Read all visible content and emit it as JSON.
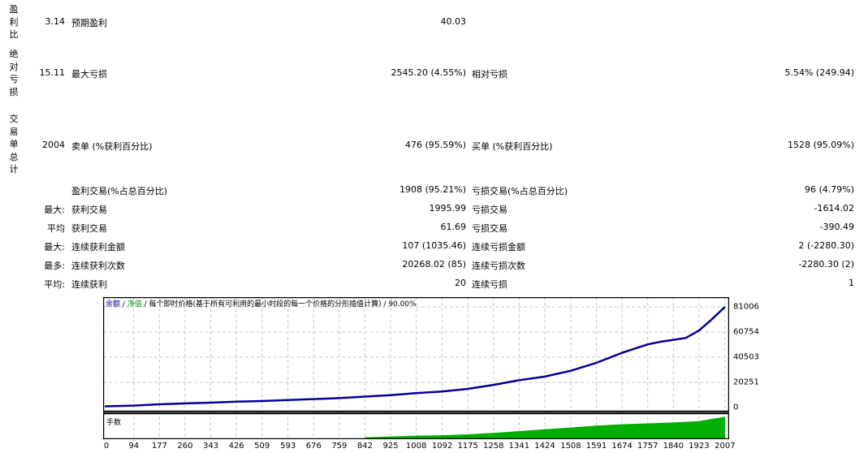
{
  "side_labels": {
    "profit_factor": "盈利比",
    "absolute_drawdown": "绝对亏损",
    "total_trades": "交易单总计"
  },
  "rows": [
    {
      "prefix": "",
      "prefix_value": "3.14",
      "label1": "预期盈利",
      "value1": "40.03",
      "label2": "",
      "value2": ""
    },
    {
      "prefix": "",
      "prefix_value": "15.11",
      "label1": "最大亏损",
      "value1": "2545.20 (4.55%)",
      "label2": "相对亏损",
      "value2": "5.54% (249.94)"
    },
    {
      "prefix": "",
      "prefix_value": "2004",
      "label1": "卖单 (%获利百分比)",
      "value1": "476 (95.59%)",
      "label2": "买单 (%获利百分比)",
      "value2": "1528 (95.09%)"
    },
    {
      "prefix": "",
      "prefix_value": "",
      "label1": "盈利交易(%占总百分比)",
      "value1": "1908 (95.21%)",
      "label2": "亏损交易(%占总百分比)",
      "value2": "96 (4.79%)"
    },
    {
      "prefix": "最大:",
      "prefix_value": "",
      "label1": "获利交易",
      "value1": "1995.99",
      "label2": "亏损交易",
      "value2": "-1614.02"
    },
    {
      "prefix": "平均",
      "prefix_value": "",
      "label1": "获利交易",
      "value1": "61.69",
      "label2": "亏损交易",
      "value2": "-390.49"
    },
    {
      "prefix": "最大:",
      "prefix_value": "",
      "label1": "连续获利金额",
      "value1": "107 (1035.46)",
      "label2": "连续亏损金额",
      "value2": "2 (-2280.30)"
    },
    {
      "prefix": "最多:",
      "prefix_value": "",
      "label1": "连续获利次数",
      "value1": "20268.02 (85)",
      "label2": "连续亏损次数",
      "value2": "-2280.30 (2)"
    },
    {
      "prefix": "平均:",
      "prefix_value": "",
      "label1": "连续获利",
      "value1": "20",
      "label2": "连续亏损",
      "value2": "1"
    }
  ],
  "chart": {
    "legend_balance": "余额",
    "legend_sep1": " / ",
    "legend_equity": "净值",
    "legend_rest": " / 每个即时价格(基于所有可利用的最小时段的每一个价格的分形插值计算) / 90.00%",
    "sub_panel_label": "手数",
    "balance_color": "#00009c",
    "equity_color": "#00a000",
    "lots_color": "#00b000"
  },
  "chart_data": {
    "type": "line",
    "title": "余额 / 净值 / 每个即时价格(基于所有可利用的最小时段的每一个价格的分形插值计算) / 90.00%",
    "xlabel": "",
    "ylabel": "",
    "y_ticks": [
      "81006",
      "60754",
      "40503",
      "20251",
      "0"
    ],
    "x_ticks": [
      "0",
      "94",
      "177",
      "260",
      "343",
      "426",
      "509",
      "593",
      "676",
      "759",
      "842",
      "925",
      "1008",
      "1092",
      "1175",
      "1258",
      "1341",
      "1424",
      "1508",
      "1591",
      "1674",
      "1757",
      "1840",
      "1923",
      "2007"
    ],
    "ylim": [
      0,
      81006
    ],
    "xlim": [
      0,
      2010
    ],
    "grid": true,
    "series": [
      {
        "name": "余额",
        "x": [
          0,
          94,
          177,
          260,
          343,
          426,
          509,
          593,
          676,
          759,
          842,
          925,
          1008,
          1092,
          1175,
          1258,
          1341,
          1424,
          1508,
          1591,
          1674,
          1757,
          1800,
          1840,
          1880,
          1923,
          1960,
          1990,
          2007
        ],
        "values": [
          1000,
          1600,
          2600,
          3300,
          3900,
          4700,
          5200,
          6000,
          6800,
          7600,
          8800,
          10000,
          11600,
          12900,
          15000,
          18200,
          22000,
          24900,
          29600,
          36000,
          44000,
          50800,
          53000,
          54500,
          56000,
          62000,
          70000,
          77000,
          81000
        ]
      },
      {
        "name": "手数",
        "x": [
          0,
          842,
          925,
          1008,
          1092,
          1175,
          1258,
          1341,
          1424,
          1508,
          1591,
          1674,
          1757,
          1840,
          1923,
          1960,
          2007
        ],
        "values": [
          0,
          0.05,
          0.08,
          0.12,
          0.14,
          0.18,
          0.24,
          0.32,
          0.4,
          0.48,
          0.56,
          0.62,
          0.66,
          0.7,
          0.76,
          0.85,
          0.95
        ]
      }
    ]
  }
}
